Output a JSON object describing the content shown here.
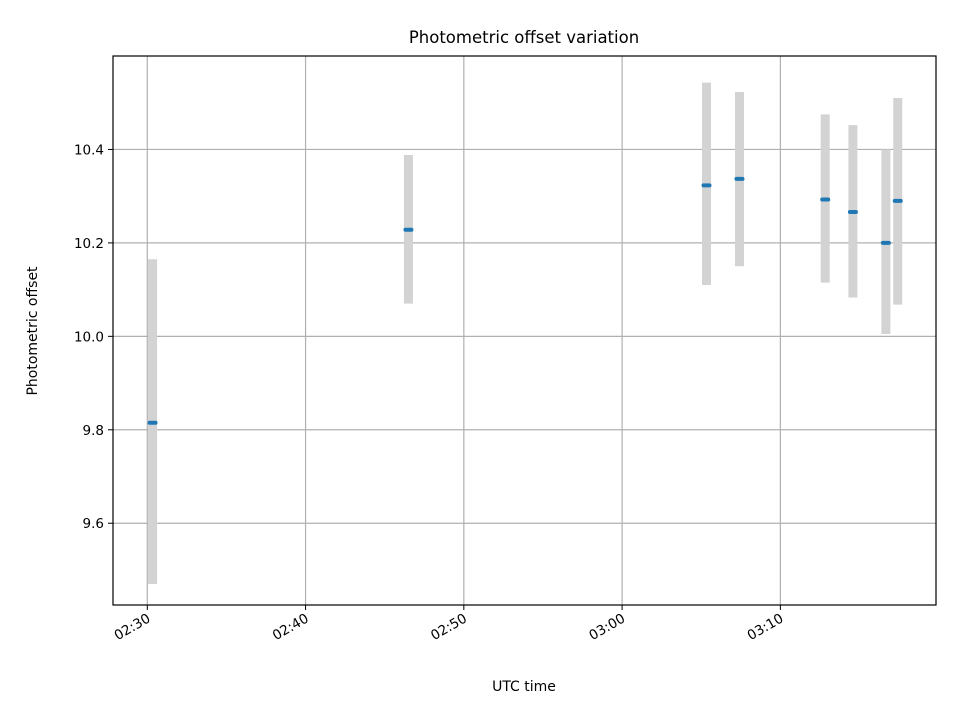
{
  "chart_data": {
    "type": "scatter",
    "title": "Photometric offset variation",
    "xlabel": "UTC time",
    "ylabel": "Photometric offset",
    "x_tick_labels": [
      "02:30",
      "02:40",
      "02:50",
      "03:00",
      "03:10"
    ],
    "x_tick_values": [
      "02:30",
      "02:40",
      "02:50",
      "03:00",
      "03:10"
    ],
    "y_ticks": [
      9.6,
      9.8,
      10.0,
      10.2,
      10.4
    ],
    "y_tick_labels": [
      "9.6",
      "9.8",
      "10.0",
      "10.2",
      "10.4"
    ],
    "xlim": [
      "02:27:50",
      "03:19:50"
    ],
    "ylim": [
      9.425,
      10.6
    ],
    "grid": true,
    "series": [
      {
        "points": [
          {
            "x": "02:30:20",
            "y": 9.815,
            "err_low": 9.47,
            "err_high": 10.165
          },
          {
            "x": "02:46:30",
            "y": 10.228,
            "err_low": 10.07,
            "err_high": 10.388
          },
          {
            "x": "03:05:20",
            "y": 10.323,
            "err_low": 10.11,
            "err_high": 10.543
          },
          {
            "x": "03:07:25",
            "y": 10.337,
            "err_low": 10.15,
            "err_high": 10.523
          },
          {
            "x": "03:12:50",
            "y": 10.293,
            "err_low": 10.115,
            "err_high": 10.475
          },
          {
            "x": "03:14:35",
            "y": 10.266,
            "err_low": 10.083,
            "err_high": 10.452
          },
          {
            "x": "03:16:40",
            "y": 10.2,
            "err_low": 10.005,
            "err_high": 10.4
          },
          {
            "x": "03:17:25",
            "y": 10.29,
            "err_low": 10.068,
            "err_high": 10.51
          }
        ]
      }
    ],
    "colors": {
      "marker": "#1f77b4",
      "errorbar": "#d3d3d3",
      "grid": "#b0b0b0"
    }
  }
}
